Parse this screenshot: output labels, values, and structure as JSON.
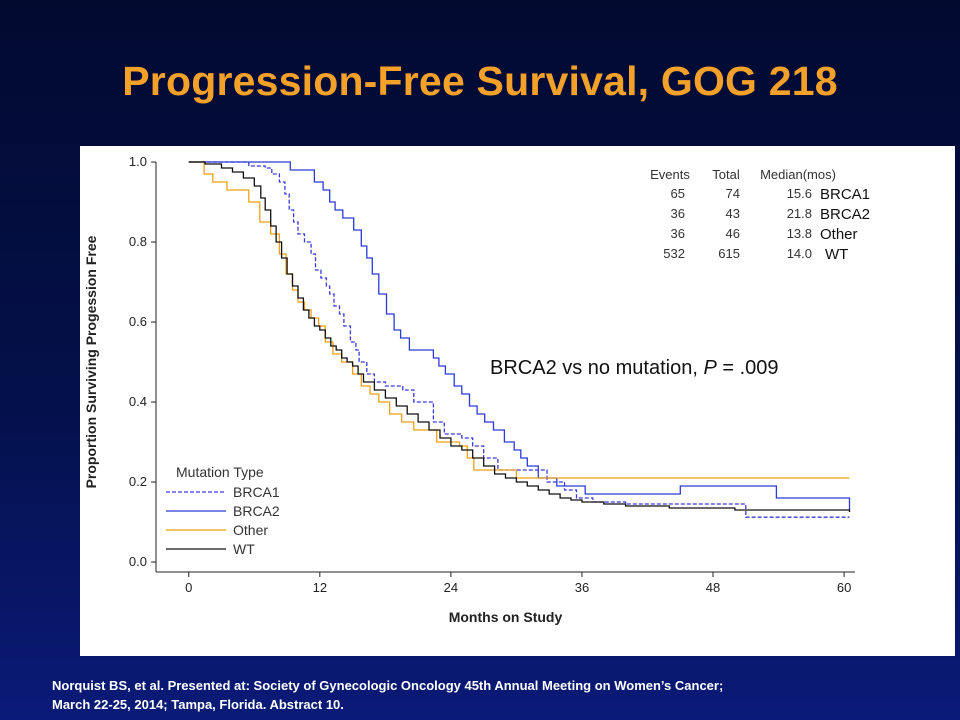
{
  "slide": {
    "title": "Progression-Free Survival, GOG 218",
    "footnote_line1": "Norquist BS, et al. Presented at:  Society of Gynecologic Oncology 45th Annual Meeting on Women’s Cancer;",
    "footnote_line2": "March 22-25, 2014; Tampa, Florida. Abstract 10."
  },
  "chart_data": {
    "type": "line",
    "subtype": "kaplan-meier step",
    "xlabel": "Months on Study",
    "ylabel": "Proportion Surviving Progession Free",
    "xlim": [
      -3,
      61
    ],
    "ylim": [
      0,
      1.0
    ],
    "x_ticks": [
      0,
      12,
      24,
      36,
      48,
      60
    ],
    "y_ticks": [
      "0.0",
      "0.2",
      "0.4",
      "0.6",
      "0.8",
      "1.0"
    ],
    "grid": false,
    "annotation": {
      "prefix": "BRCA2 vs no mutation, ",
      "italic": "P",
      "suffix": " = .009"
    },
    "table": {
      "headers": [
        "Events",
        "Total",
        "Median(mos)"
      ],
      "rows": [
        {
          "events": "65",
          "total": "74",
          "median": "15.6",
          "label": "BRCA1"
        },
        {
          "events": "36",
          "total": "43",
          "median": "21.8",
          "label": "BRCA2"
        },
        {
          "events": "36",
          "total": "46",
          "median": "13.8",
          "label": "Other"
        },
        {
          "events": "532",
          "total": "615",
          "median": "14.0",
          "label": "WT"
        }
      ]
    },
    "legend": {
      "title": "Mutation Type",
      "placement": "bottom-left"
    },
    "series": [
      {
        "name": "BRCA1",
        "color": "#3a3adf",
        "dash": "dashed",
        "points": [
          [
            0,
            1.0
          ],
          [
            5.5,
            0.99
          ],
          [
            7,
            0.985
          ],
          [
            7.6,
            0.97
          ],
          [
            8.3,
            0.95
          ],
          [
            8.8,
            0.92
          ],
          [
            9.2,
            0.88
          ],
          [
            9.6,
            0.85
          ],
          [
            10,
            0.82
          ],
          [
            10.6,
            0.8
          ],
          [
            11.2,
            0.77
          ],
          [
            11.6,
            0.73
          ],
          [
            12.1,
            0.71
          ],
          [
            12.6,
            0.69
          ],
          [
            12.9,
            0.67
          ],
          [
            13.3,
            0.64
          ],
          [
            13.8,
            0.62
          ],
          [
            14.2,
            0.59
          ],
          [
            14.8,
            0.55
          ],
          [
            15.3,
            0.53
          ],
          [
            15.6,
            0.5
          ],
          [
            16.3,
            0.47
          ],
          [
            17,
            0.45
          ],
          [
            18,
            0.44
          ],
          [
            19.6,
            0.43
          ],
          [
            20.6,
            0.4
          ],
          [
            22.4,
            0.35
          ],
          [
            23.4,
            0.32
          ],
          [
            25,
            0.31
          ],
          [
            26,
            0.29
          ],
          [
            27,
            0.26
          ],
          [
            28.3,
            0.23
          ],
          [
            32.8,
            0.2
          ],
          [
            34.4,
            0.18
          ],
          [
            35.5,
            0.16
          ],
          [
            37,
            0.15
          ],
          [
            40,
            0.145
          ],
          [
            45,
            0.145
          ],
          [
            51,
            0.112
          ],
          [
            60.5,
            0.112
          ]
        ]
      },
      {
        "name": "BRCA2",
        "color": "#2a3ad8",
        "dash": "solid",
        "points": [
          [
            0,
            1.0
          ],
          [
            9.3,
            0.98
          ],
          [
            11.5,
            0.95
          ],
          [
            12.3,
            0.93
          ],
          [
            12.9,
            0.9
          ],
          [
            13.4,
            0.88
          ],
          [
            14.1,
            0.86
          ],
          [
            15.1,
            0.83
          ],
          [
            15.8,
            0.79
          ],
          [
            16.3,
            0.76
          ],
          [
            16.8,
            0.72
          ],
          [
            17.4,
            0.67
          ],
          [
            18.1,
            0.62
          ],
          [
            18.8,
            0.58
          ],
          [
            19.4,
            0.56
          ],
          [
            20.2,
            0.53
          ],
          [
            22.4,
            0.51
          ],
          [
            22.9,
            0.49
          ],
          [
            23.5,
            0.47
          ],
          [
            24.3,
            0.44
          ],
          [
            25,
            0.42
          ],
          [
            25.7,
            0.39
          ],
          [
            26.4,
            0.37
          ],
          [
            27.1,
            0.35
          ],
          [
            27.9,
            0.33
          ],
          [
            28.9,
            0.3
          ],
          [
            29.8,
            0.28
          ],
          [
            30.4,
            0.26
          ],
          [
            31,
            0.24
          ],
          [
            32,
            0.21
          ],
          [
            33.7,
            0.19
          ],
          [
            36.3,
            0.17
          ],
          [
            45,
            0.19
          ],
          [
            53.8,
            0.16
          ],
          [
            60.5,
            0.13
          ]
        ]
      },
      {
        "name": "Other",
        "color": "#f0a018",
        "dash": "solid",
        "points": [
          [
            0,
            1.0
          ],
          [
            1.4,
            0.97
          ],
          [
            2.2,
            0.95
          ],
          [
            3.5,
            0.93
          ],
          [
            5.5,
            0.9
          ],
          [
            6.5,
            0.85
          ],
          [
            7.5,
            0.82
          ],
          [
            8.3,
            0.77
          ],
          [
            8.9,
            0.72
          ],
          [
            9.5,
            0.68
          ],
          [
            10,
            0.65
          ],
          [
            10.6,
            0.63
          ],
          [
            11.2,
            0.61
          ],
          [
            11.9,
            0.59
          ],
          [
            12.5,
            0.55
          ],
          [
            13.2,
            0.52
          ],
          [
            14,
            0.5
          ],
          [
            15,
            0.47
          ],
          [
            15.8,
            0.44
          ],
          [
            16.6,
            0.42
          ],
          [
            17.4,
            0.4
          ],
          [
            18.4,
            0.37
          ],
          [
            19.5,
            0.35
          ],
          [
            20.6,
            0.33
          ],
          [
            22.7,
            0.3
          ],
          [
            24.8,
            0.29
          ],
          [
            25.5,
            0.26
          ],
          [
            26.1,
            0.23
          ],
          [
            30,
            0.21
          ],
          [
            60.5,
            0.21
          ]
        ]
      },
      {
        "name": "WT",
        "color": "#111111",
        "dash": "solid",
        "points": [
          [
            0,
            1.0
          ],
          [
            1.5,
            0.995
          ],
          [
            3,
            0.985
          ],
          [
            4,
            0.975
          ],
          [
            5,
            0.96
          ],
          [
            6,
            0.94
          ],
          [
            6.6,
            0.91
          ],
          [
            7,
            0.88
          ],
          [
            7.5,
            0.84
          ],
          [
            8,
            0.8
          ],
          [
            8.5,
            0.76
          ],
          [
            9,
            0.72
          ],
          [
            9.5,
            0.69
          ],
          [
            10,
            0.66
          ],
          [
            10.5,
            0.63
          ],
          [
            11,
            0.61
          ],
          [
            11.5,
            0.59
          ],
          [
            12,
            0.58
          ],
          [
            12.5,
            0.56
          ],
          [
            13,
            0.54
          ],
          [
            13.5,
            0.53
          ],
          [
            14,
            0.51
          ],
          [
            14.5,
            0.5
          ],
          [
            15,
            0.49
          ],
          [
            15.5,
            0.47
          ],
          [
            16,
            0.45
          ],
          [
            17,
            0.43
          ],
          [
            18,
            0.41
          ],
          [
            19,
            0.39
          ],
          [
            20,
            0.37
          ],
          [
            21,
            0.35
          ],
          [
            22,
            0.33
          ],
          [
            23,
            0.31
          ],
          [
            24,
            0.29
          ],
          [
            25,
            0.28
          ],
          [
            26,
            0.26
          ],
          [
            27,
            0.24
          ],
          [
            28,
            0.22
          ],
          [
            29,
            0.21
          ],
          [
            30,
            0.2
          ],
          [
            31,
            0.19
          ],
          [
            32,
            0.18
          ],
          [
            33,
            0.17
          ],
          [
            34,
            0.16
          ],
          [
            35,
            0.155
          ],
          [
            36,
            0.15
          ],
          [
            38,
            0.145
          ],
          [
            40,
            0.14
          ],
          [
            44,
            0.135
          ],
          [
            50,
            0.13
          ],
          [
            54,
            0.13
          ],
          [
            60.5,
            0.125
          ]
        ]
      }
    ]
  }
}
